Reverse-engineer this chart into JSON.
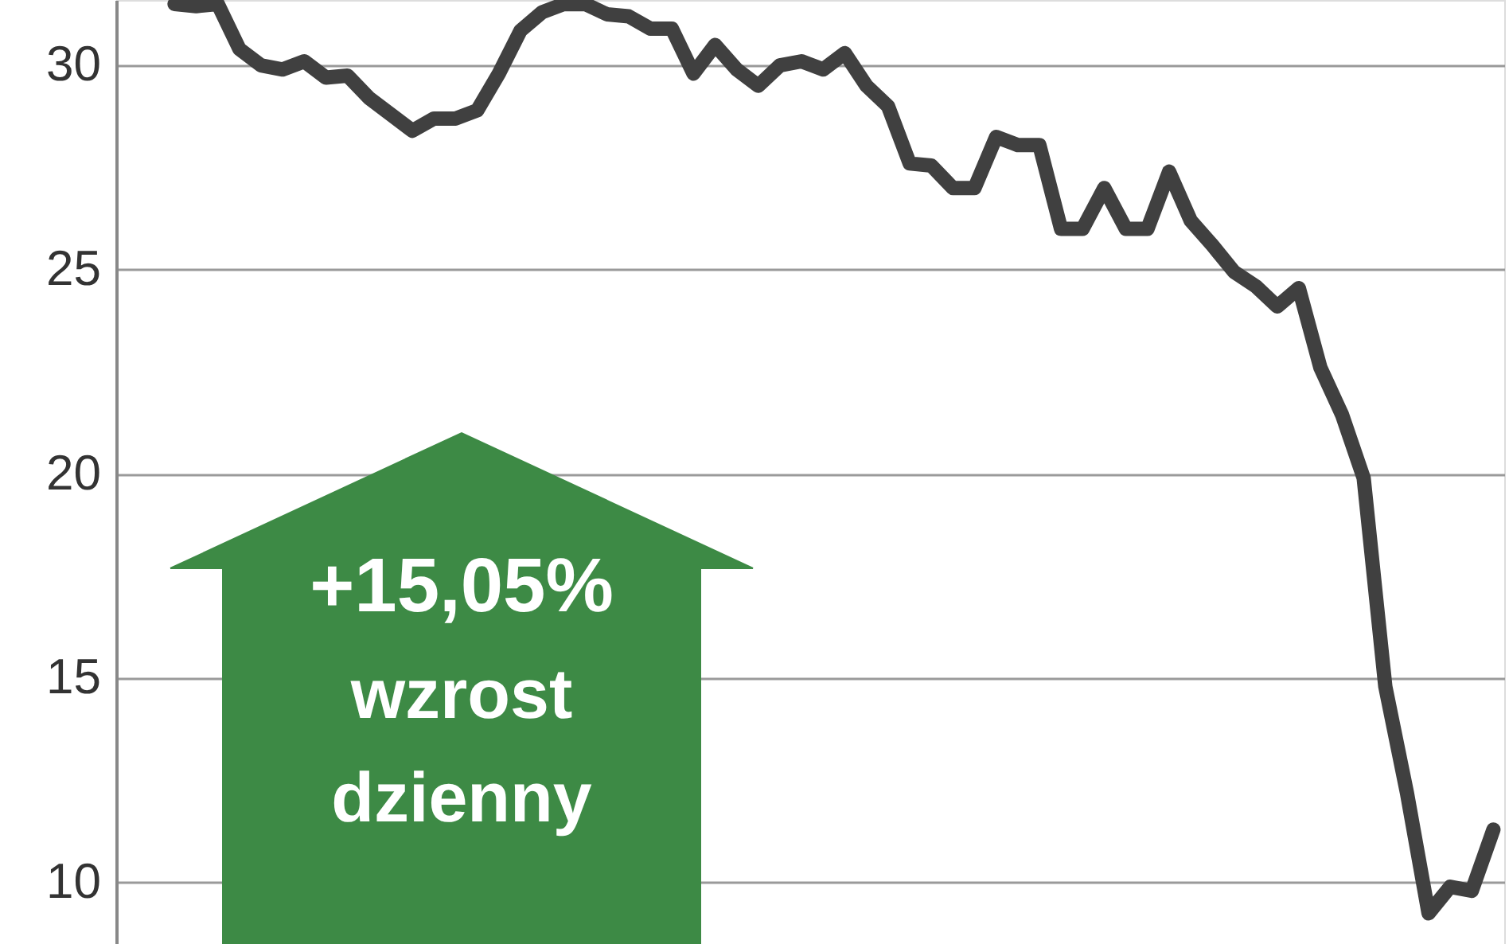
{
  "chart_data": {
    "type": "line",
    "categories": [
      null,
      null,
      null,
      null,
      null,
      null,
      null,
      null,
      null,
      null,
      null,
      null,
      null,
      null,
      null,
      null,
      null,
      null,
      null,
      null,
      null,
      null,
      null,
      null,
      null,
      null,
      null,
      null,
      null,
      null,
      null,
      null,
      null,
      null,
      null,
      null,
      null,
      null,
      null,
      null,
      null,
      null,
      null,
      null,
      null,
      null,
      null,
      null,
      null,
      null,
      null,
      null,
      null,
      null,
      null,
      null,
      null,
      null,
      null,
      null,
      null,
      null
    ],
    "series": [
      {
        "color": "#404040",
        "values": [
          31.5,
          31.45,
          31.5,
          30.4,
          30.0,
          29.9,
          30.1,
          29.7,
          29.75,
          29.2,
          28.8,
          28.4,
          28.7,
          28.7,
          28.9,
          29.8,
          30.85,
          31.3,
          31.5,
          31.5,
          31.25,
          31.2,
          30.9,
          30.9,
          29.8,
          30.5,
          29.9,
          29.5,
          30.0,
          30.1,
          29.9,
          30.3,
          29.5,
          29.0,
          27.6,
          27.55,
          27.0,
          27.0,
          28.25,
          28.05,
          28.05,
          26.0,
          26.0,
          27.0,
          26.0,
          26.0,
          27.4,
          26.2,
          25.6,
          24.95,
          24.6,
          24.1,
          24.55,
          22.6,
          21.45,
          19.9,
          14.8,
          12.2,
          9.25,
          9.9,
          9.8,
          11.3
        ]
      }
    ],
    "ylim": [
      8.5,
      31.6
    ],
    "yticks": [
      10,
      15,
      20,
      25,
      30
    ],
    "grid": "y",
    "marker": "none",
    "line_style": "solid",
    "tick_labels": "y",
    "annotations": [
      "+15,05%",
      "wzrost",
      "dzienny"
    ]
  }
}
